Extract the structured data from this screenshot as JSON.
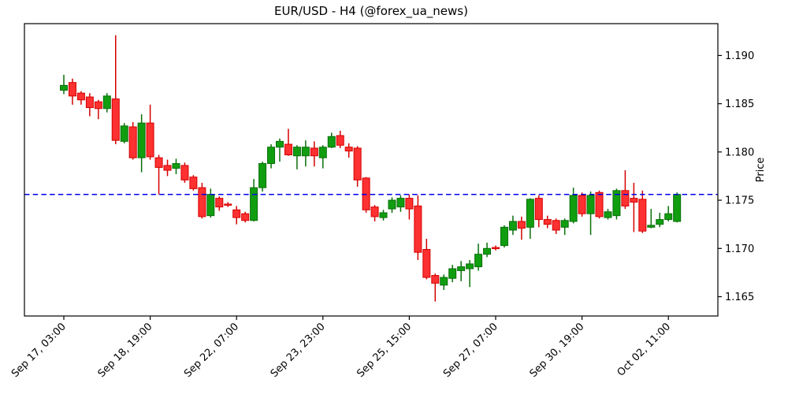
{
  "chart_data": {
    "type": "candlestick",
    "title": "EUR/USD - H4 (@forex_ua_news)",
    "symbol": "EUR/USD",
    "timeframe": "H4",
    "title_source": "@forex_ua_news",
    "ylabel": "Price",
    "ylim": [
      1.163,
      1.1933
    ],
    "yticks": [
      1.165,
      1.17,
      1.175,
      1.18,
      1.185,
      1.19
    ],
    "ytick_labels": [
      "1.165",
      "1.170",
      "1.175",
      "1.180",
      "1.185",
      "1.190"
    ],
    "hline": 1.1756,
    "grid": false,
    "legend": false,
    "n_candles": 72,
    "xticks": [
      {
        "candle_index": 0,
        "label": "Sep 17, 03:00"
      },
      {
        "candle_index": 10,
        "label": "Sep 18, 19:00"
      },
      {
        "candle_index": 20,
        "label": "Sep 22, 07:00"
      },
      {
        "candle_index": 30,
        "label": "Sep 23, 23:00"
      },
      {
        "candle_index": 40,
        "label": "Sep 25, 15:00"
      },
      {
        "candle_index": 50,
        "label": "Sep 27, 07:00"
      },
      {
        "candle_index": 60,
        "label": "Sep 30, 19:00"
      },
      {
        "candle_index": 70,
        "label": "Oct 02, 11:00"
      }
    ],
    "candles_format": [
      "open",
      "high",
      "low",
      "close"
    ],
    "candles": [
      [
        1.1864,
        1.188,
        1.186,
        1.1869
      ],
      [
        1.1872,
        1.1876,
        1.1849,
        1.1858
      ],
      [
        1.1861,
        1.1863,
        1.1849,
        1.1854
      ],
      [
        1.1857,
        1.1861,
        1.1837,
        1.1846
      ],
      [
        1.1852,
        1.1854,
        1.1834,
        1.1845
      ],
      [
        1.1845,
        1.1861,
        1.1841,
        1.1858
      ],
      [
        1.1855,
        1.1921,
        1.1808,
        1.1812
      ],
      [
        1.1811,
        1.183,
        1.1809,
        1.1827
      ],
      [
        1.1826,
        1.1831,
        1.1792,
        1.1794
      ],
      [
        1.1794,
        1.1839,
        1.1779,
        1.183
      ],
      [
        1.183,
        1.1849,
        1.1792,
        1.1795
      ],
      [
        1.1794,
        1.1797,
        1.1756,
        1.1784
      ],
      [
        1.1786,
        1.1792,
        1.1775,
        1.1781
      ],
      [
        1.1783,
        1.1793,
        1.1777,
        1.1788
      ],
      [
        1.1786,
        1.1789,
        1.1768,
        1.1771
      ],
      [
        1.1774,
        1.1776,
        1.176,
        1.1762
      ],
      [
        1.1763,
        1.1768,
        1.1731,
        1.1733
      ],
      [
        1.1734,
        1.1762,
        1.1732,
        1.1756
      ],
      [
        1.1752,
        1.1754,
        1.1739,
        1.1743
      ],
      [
        1.1746,
        1.1748,
        1.1743,
        1.1745
      ],
      [
        1.174,
        1.1744,
        1.1725,
        1.1732
      ],
      [
        1.1736,
        1.1738,
        1.1727,
        1.1729
      ],
      [
        1.1729,
        1.1772,
        1.1728,
        1.1763
      ],
      [
        1.1763,
        1.179,
        1.1759,
        1.1788
      ],
      [
        1.1788,
        1.1808,
        1.1783,
        1.1805
      ],
      [
        1.1805,
        1.1814,
        1.179,
        1.1811
      ],
      [
        1.1808,
        1.1824,
        1.1796,
        1.1797
      ],
      [
        1.1796,
        1.1807,
        1.1782,
        1.1805
      ],
      [
        1.1796,
        1.1812,
        1.1785,
        1.1805
      ],
      [
        1.1804,
        1.1811,
        1.1785,
        1.1796
      ],
      [
        1.1794,
        1.1807,
        1.1783,
        1.1805
      ],
      [
        1.1805,
        1.182,
        1.1804,
        1.1816
      ],
      [
        1.1817,
        1.1822,
        1.1804,
        1.1807
      ],
      [
        1.1805,
        1.1809,
        1.1794,
        1.1801
      ],
      [
        1.1804,
        1.1806,
        1.1764,
        1.1771
      ],
      [
        1.1773,
        1.1774,
        1.1737,
        1.174
      ],
      [
        1.1743,
        1.1745,
        1.1728,
        1.1733
      ],
      [
        1.1732,
        1.174,
        1.1729,
        1.1737
      ],
      [
        1.1741,
        1.1753,
        1.1737,
        1.175
      ],
      [
        1.1743,
        1.1755,
        1.1738,
        1.1752
      ],
      [
        1.1752,
        1.1756,
        1.173,
        1.1741
      ],
      [
        1.1744,
        1.1755,
        1.1688,
        1.1696
      ],
      [
        1.1699,
        1.171,
        1.1668,
        1.167
      ],
      [
        1.1672,
        1.1674,
        1.1645,
        1.1664
      ],
      [
        1.1662,
        1.1673,
        1.1657,
        1.167
      ],
      [
        1.1669,
        1.1683,
        1.1665,
        1.1679
      ],
      [
        1.1677,
        1.1687,
        1.1666,
        1.1681
      ],
      [
        1.1679,
        1.1688,
        1.166,
        1.1684
      ],
      [
        1.1681,
        1.1705,
        1.1677,
        1.1694
      ],
      [
        1.1694,
        1.1706,
        1.1691,
        1.17
      ],
      [
        1.1701,
        1.1703,
        1.1698,
        1.17
      ],
      [
        1.1703,
        1.1724,
        1.1701,
        1.1722
      ],
      [
        1.1719,
        1.1734,
        1.1714,
        1.1728
      ],
      [
        1.1728,
        1.1733,
        1.1709,
        1.1721
      ],
      [
        1.1722,
        1.1752,
        1.171,
        1.1751
      ],
      [
        1.1752,
        1.1755,
        1.1722,
        1.173
      ],
      [
        1.173,
        1.1734,
        1.1721,
        1.1725
      ],
      [
        1.1729,
        1.1731,
        1.1715,
        1.1719
      ],
      [
        1.1722,
        1.1731,
        1.1714,
        1.1729
      ],
      [
        1.1728,
        1.1763,
        1.1726,
        1.1755
      ],
      [
        1.1755,
        1.1758,
        1.1733,
        1.1736
      ],
      [
        1.1736,
        1.1759,
        1.1714,
        1.1755
      ],
      [
        1.1758,
        1.176,
        1.1731,
        1.1733
      ],
      [
        1.1732,
        1.1741,
        1.173,
        1.1738
      ],
      [
        1.1734,
        1.1762,
        1.173,
        1.176
      ],
      [
        1.176,
        1.1781,
        1.1741,
        1.1744
      ],
      [
        1.1752,
        1.1768,
        1.1717,
        1.1748
      ],
      [
        1.1751,
        1.176,
        1.1716,
        1.1718
      ],
      [
        1.1722,
        1.1741,
        1.1721,
        1.1724
      ],
      [
        1.1725,
        1.1737,
        1.1722,
        1.173
      ],
      [
        1.173,
        1.1744,
        1.1728,
        1.1736
      ],
      [
        1.1728,
        1.1758,
        1.1727,
        1.1756
      ]
    ],
    "colors": {
      "up_fill": "#109e10",
      "up_edge": "#0a6e0a",
      "down_fill": "#fd3131",
      "down_edge": "#d40000",
      "hline": "#0000ee",
      "axis": "#000000",
      "background": "#ffffff"
    }
  }
}
